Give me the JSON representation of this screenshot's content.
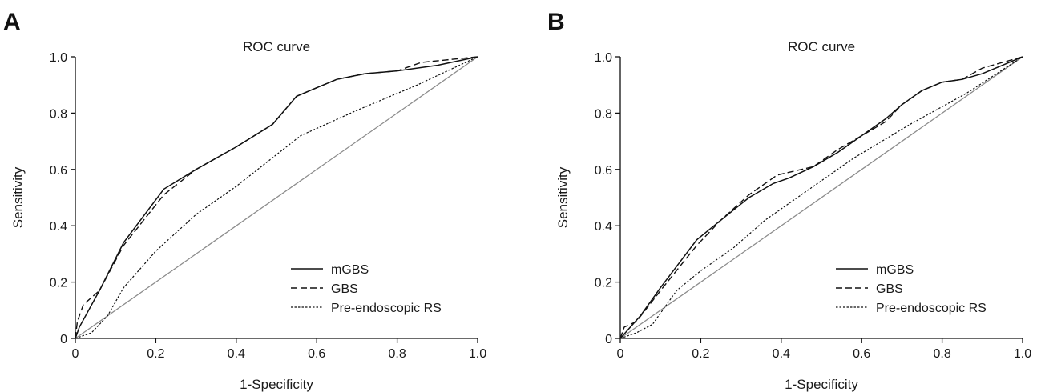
{
  "chart_data": [
    {
      "panel": "A",
      "type": "line",
      "title": "ROC curve",
      "xlabel": "1-Specificity",
      "ylabel": "Sensitivity",
      "xlim": [
        0,
        1
      ],
      "ylim": [
        0,
        1
      ],
      "x_ticks": [
        "0",
        "0.2",
        "0.4",
        "0.6",
        "0.8",
        "1.0"
      ],
      "y_ticks": [
        "0",
        "0.2",
        "0.4",
        "0.6",
        "0.8",
        "1.0"
      ],
      "legend_position": "bottom-right",
      "grid": false,
      "series": [
        {
          "name": "mGBS",
          "style": "solid",
          "x": [
            0,
            0.01,
            0.06,
            0.12,
            0.22,
            0.3,
            0.4,
            0.49,
            0.55,
            0.6,
            0.65,
            0.72,
            0.8,
            0.9,
            1.0
          ],
          "y": [
            0,
            0.04,
            0.17,
            0.34,
            0.53,
            0.6,
            0.68,
            0.76,
            0.86,
            0.89,
            0.92,
            0.94,
            0.95,
            0.97,
            1.0
          ]
        },
        {
          "name": "GBS",
          "style": "dashed",
          "x": [
            0,
            0.005,
            0.02,
            0.06,
            0.12,
            0.22,
            0.3,
            0.4,
            0.49,
            0.55,
            0.6,
            0.65,
            0.72,
            0.8,
            0.86,
            0.93,
            1.0
          ],
          "y": [
            0,
            0.06,
            0.12,
            0.17,
            0.33,
            0.51,
            0.6,
            0.68,
            0.76,
            0.86,
            0.89,
            0.92,
            0.94,
            0.95,
            0.98,
            0.99,
            1.0
          ]
        },
        {
          "name": "Pre-endoscopic RS",
          "style": "dotted",
          "x": [
            0,
            0.04,
            0.08,
            0.12,
            0.2,
            0.3,
            0.4,
            0.56,
            0.7,
            0.85,
            1.0
          ],
          "y": [
            0,
            0.02,
            0.08,
            0.18,
            0.31,
            0.44,
            0.54,
            0.72,
            0.81,
            0.9,
            1.0
          ]
        }
      ],
      "reference_line": {
        "x": [
          0,
          1
        ],
        "y": [
          0,
          1
        ]
      }
    },
    {
      "panel": "B",
      "type": "line",
      "title": "ROC curve",
      "xlabel": "1-Specificity",
      "ylabel": "Sensitivity",
      "xlim": [
        0,
        1
      ],
      "ylim": [
        0,
        1
      ],
      "x_ticks": [
        "0",
        "0.2",
        "0.4",
        "0.6",
        "0.8",
        "1.0"
      ],
      "y_ticks": [
        "0",
        "0.2",
        "0.4",
        "0.6",
        "0.8",
        "1.0"
      ],
      "legend_position": "bottom-right",
      "grid": false,
      "series": [
        {
          "name": "mGBS",
          "style": "solid",
          "x": [
            0,
            0.05,
            0.1,
            0.19,
            0.25,
            0.32,
            0.38,
            0.42,
            0.48,
            0.54,
            0.6,
            0.66,
            0.7,
            0.75,
            0.8,
            0.85,
            0.9,
            0.95,
            1.0
          ],
          "y": [
            0,
            0.08,
            0.18,
            0.35,
            0.42,
            0.5,
            0.55,
            0.57,
            0.61,
            0.66,
            0.72,
            0.78,
            0.83,
            0.88,
            0.91,
            0.92,
            0.94,
            0.97,
            1.0
          ]
        },
        {
          "name": "GBS",
          "style": "dashed",
          "x": [
            0,
            0.01,
            0.04,
            0.1,
            0.19,
            0.25,
            0.32,
            0.39,
            0.48,
            0.54,
            0.6,
            0.66,
            0.7,
            0.75,
            0.8,
            0.85,
            0.9,
            0.95,
            1.0
          ],
          "y": [
            0,
            0.04,
            0.06,
            0.17,
            0.33,
            0.42,
            0.51,
            0.58,
            0.61,
            0.67,
            0.72,
            0.77,
            0.83,
            0.88,
            0.91,
            0.92,
            0.96,
            0.98,
            1.0
          ]
        },
        {
          "name": "Pre-endoscopic RS",
          "style": "dotted",
          "x": [
            0,
            0.04,
            0.08,
            0.14,
            0.2,
            0.28,
            0.36,
            0.46,
            0.58,
            0.72,
            0.86,
            1.0
          ],
          "y": [
            0,
            0.02,
            0.05,
            0.17,
            0.24,
            0.32,
            0.42,
            0.52,
            0.64,
            0.76,
            0.87,
            1.0
          ]
        }
      ],
      "reference_line": {
        "x": [
          0,
          1
        ],
        "y": [
          0,
          1
        ]
      }
    }
  ]
}
